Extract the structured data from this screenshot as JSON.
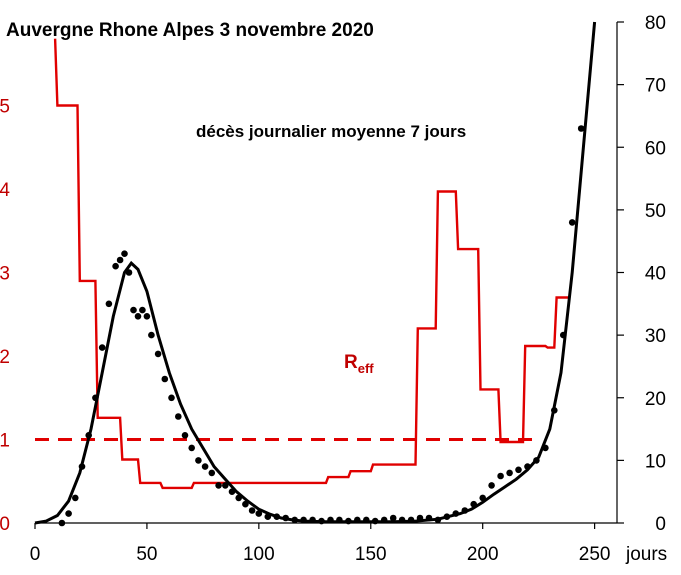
{
  "chart_data": {
    "type": "line",
    "title": "Auvergne Rhone Alpes 3 novembre 2020",
    "annotation": "décès journalier  moyenne 7 jours",
    "xlabel": "jours",
    "xlim": [
      0,
      260
    ],
    "x_ticks": [
      "0",
      "50",
      "100",
      "150",
      "200",
      "250"
    ],
    "y_left": {
      "lim": [
        0,
        6
      ],
      "ticks": [
        "0",
        "1",
        "2",
        "3",
        "4",
        "5"
      ],
      "color": "#c00000"
    },
    "y_right": {
      "lim": [
        0,
        80
      ],
      "ticks": [
        "0",
        "10",
        "20",
        "30",
        "40",
        "50",
        "60",
        "70",
        "80"
      ]
    },
    "reference_line": {
      "axis": "left",
      "value": 1,
      "style": "dashed",
      "color": "#e00000"
    },
    "series": [
      {
        "label_main": "R",
        "label_sub": "eff",
        "axis": "left",
        "color": "#e00000",
        "style": "step",
        "x": [
          9,
          10,
          19,
          20,
          27,
          28,
          30,
          31,
          38,
          39,
          46,
          47,
          56,
          57,
          70,
          71,
          77,
          78,
          110,
          111,
          130,
          131,
          140,
          141,
          150,
          151,
          170,
          171,
          179,
          180,
          188,
          189,
          198,
          199,
          207,
          208,
          218,
          219,
          228,
          229,
          232,
          233,
          239
        ],
        "y": [
          5.8,
          5.0,
          5.0,
          2.9,
          2.9,
          1.26,
          1.26,
          1.26,
          1.26,
          0.76,
          0.76,
          0.48,
          0.48,
          0.42,
          0.42,
          0.48,
          0.48,
          0.48,
          0.48,
          0.48,
          0.48,
          0.55,
          0.55,
          0.62,
          0.62,
          0.7,
          0.7,
          2.33,
          2.33,
          3.97,
          3.97,
          3.28,
          3.28,
          1.6,
          1.6,
          0.97,
          0.97,
          2.12,
          2.12,
          2.1,
          2.1,
          2.7,
          2.7
        ]
      },
      {
        "name": "",
        "axis": "right",
        "color": "#000000",
        "style": "line",
        "x": [
          0,
          5,
          10,
          15,
          20,
          25,
          30,
          35,
          40,
          43,
          46,
          50,
          55,
          60,
          65,
          70,
          75,
          80,
          85,
          90,
          95,
          100,
          105,
          110,
          115,
          120,
          130,
          140,
          150,
          160,
          170,
          180,
          190,
          195,
          200,
          205,
          210,
          215,
          220,
          225,
          230,
          235,
          240,
          245,
          250
        ],
        "y": [
          0,
          0.3,
          1.2,
          3.5,
          8,
          15,
          24,
          33,
          40,
          41.5,
          40.5,
          37,
          30,
          24,
          19,
          15,
          12,
          9,
          7,
          5,
          3.5,
          2.2,
          1.4,
          0.8,
          0.5,
          0.3,
          0.2,
          0.2,
          0.2,
          0.2,
          0.3,
          0.6,
          1.5,
          2.2,
          3.3,
          4.6,
          5.8,
          7,
          8.5,
          10.5,
          15,
          24,
          40,
          60,
          80
        ]
      },
      {
        "name": "",
        "axis": "right",
        "color": "#000000",
        "style": "scatter",
        "x": [
          12,
          15,
          18,
          21,
          24,
          27,
          30,
          33,
          36,
          38,
          40,
          42,
          44,
          46,
          48,
          50,
          52,
          55,
          58,
          61,
          64,
          67,
          70,
          73,
          76,
          79,
          82,
          85,
          88,
          91,
          94,
          97,
          100,
          104,
          108,
          112,
          116,
          120,
          124,
          128,
          132,
          136,
          140,
          144,
          148,
          152,
          156,
          160,
          164,
          168,
          172,
          176,
          180,
          184,
          188,
          192,
          196,
          200,
          204,
          208,
          212,
          216,
          220,
          224,
          228,
          232,
          236,
          240,
          244
        ],
        "y": [
          0,
          1.5,
          4,
          9,
          14,
          20,
          28,
          35,
          41,
          42,
          43,
          40,
          34,
          33,
          34,
          33,
          30,
          27,
          23,
          20,
          17,
          14,
          12,
          10,
          9,
          8,
          6,
          6,
          5,
          4,
          3,
          2,
          1.5,
          1,
          1,
          0.8,
          0.5,
          0.5,
          0.5,
          0.3,
          0.5,
          0.5,
          0.3,
          0.5,
          0.5,
          0.3,
          0.5,
          0.8,
          0.5,
          0.5,
          0.8,
          0.8,
          0.5,
          1,
          1.5,
          2,
          3,
          4,
          6,
          7.5,
          8,
          8.5,
          9,
          10,
          12,
          18,
          30,
          48,
          63
        ]
      }
    ]
  }
}
